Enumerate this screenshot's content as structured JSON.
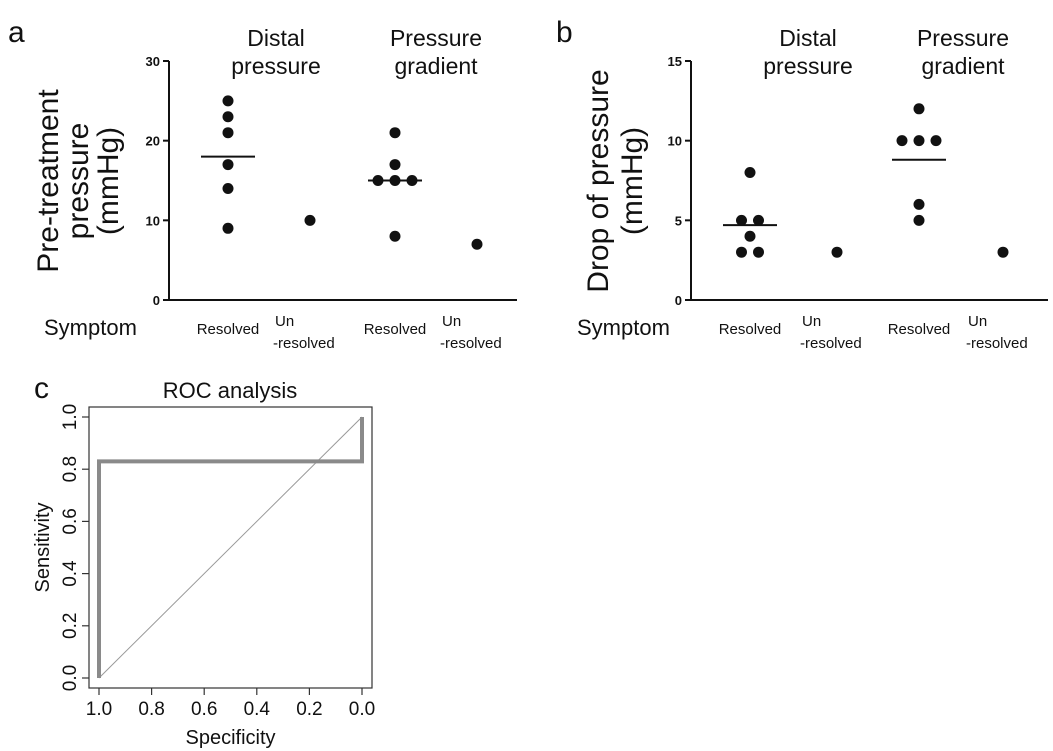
{
  "chart_data": [
    {
      "panel": "a",
      "type": "scatter",
      "ylabel": [
        "Pre-treatment",
        "pressure",
        "(mmHg)"
      ],
      "ylim": [
        0,
        30
      ],
      "yticks": [
        0,
        10,
        20,
        30
      ],
      "row_label": "Symptom",
      "groups": [
        {
          "title": [
            "Distal",
            "pressure"
          ]
        },
        {
          "title": [
            "Pressure",
            "gradient"
          ]
        }
      ],
      "categories": [
        {
          "group": 0,
          "label": [
            "Resolved"
          ],
          "values": [
            25,
            23,
            21,
            17,
            14,
            9
          ],
          "median": 18
        },
        {
          "group": 0,
          "label": [
            "Un",
            "-resolved"
          ],
          "values": [
            10
          ],
          "median": null
        },
        {
          "group": 1,
          "label": [
            "Resolved"
          ],
          "values": [
            21,
            17,
            15,
            15,
            15,
            8
          ],
          "median": 15
        },
        {
          "group": 1,
          "label": [
            "Un",
            "-resolved"
          ],
          "values": [
            7
          ],
          "median": null
        }
      ]
    },
    {
      "panel": "b",
      "type": "scatter",
      "ylabel": [
        "Drop of pressure",
        "(mmHg)"
      ],
      "ylim": [
        0,
        15
      ],
      "yticks": [
        0,
        5,
        10,
        15
      ],
      "row_label": "Symptom",
      "groups": [
        {
          "title": [
            "Distal",
            "pressure"
          ]
        },
        {
          "title": [
            "Pressure",
            "gradient"
          ]
        }
      ],
      "categories": [
        {
          "group": 0,
          "label": [
            "Resolved"
          ],
          "values": [
            8,
            5,
            5,
            4,
            3,
            3
          ],
          "median": 4.7
        },
        {
          "group": 0,
          "label": [
            "Un",
            "-resolved"
          ],
          "values": [
            3
          ],
          "median": null
        },
        {
          "group": 1,
          "label": [
            "Resolved"
          ],
          "values": [
            12,
            10,
            10,
            10,
            6,
            5
          ],
          "median": 8.8
        },
        {
          "group": 1,
          "label": [
            "Un",
            "-resolved"
          ],
          "values": [
            3
          ],
          "median": null
        }
      ]
    },
    {
      "panel": "c",
      "type": "line",
      "title": "ROC analysis",
      "xlabel": "Specificity",
      "ylabel": "Sensitivity",
      "xlim": [
        1.0,
        0.0
      ],
      "ylim": [
        0.0,
        1.0
      ],
      "xticks": [
        "1.0",
        "0.8",
        "0.6",
        "0.4",
        "0.2",
        "0.0"
      ],
      "yticks": [
        "0.0",
        "0.2",
        "0.4",
        "0.6",
        "0.8",
        "1.0"
      ],
      "series": [
        {
          "specificity": [
            1.0,
            1.0,
            0.0,
            0.0
          ],
          "sensitivity": [
            0.0,
            0.83,
            0.83,
            1.0
          ]
        }
      ],
      "reference_line": {
        "specificity": [
          1.0,
          0.0
        ],
        "sensitivity": [
          0.0,
          1.0
        ]
      }
    }
  ]
}
